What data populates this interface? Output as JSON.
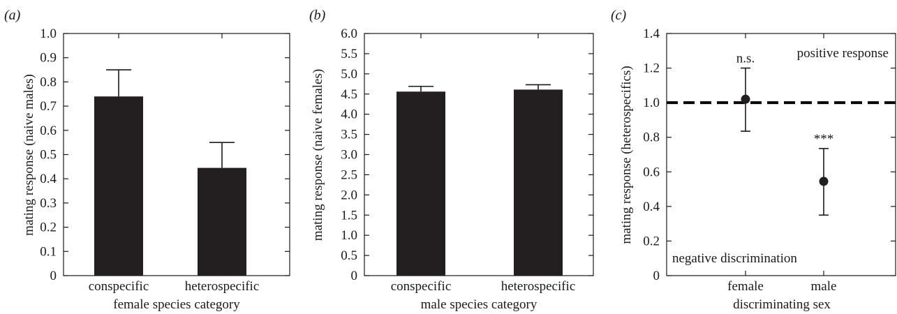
{
  "colors": {
    "bar": "#231f20",
    "axis": "#1a1a1a",
    "reference_line": "#000000"
  },
  "chart_data": [
    {
      "panel_label": "(a)",
      "type": "bar",
      "categories": [
        "conspecific",
        "heterospecific"
      ],
      "values": [
        0.74,
        0.445
      ],
      "error_upper": [
        0.85,
        0.55
      ],
      "xlabel": "female species category",
      "ylabel": "mating response (naive males)",
      "ylim": [
        0,
        1.0
      ],
      "yticks": [
        "0",
        "0.1",
        "0.2",
        "0.3",
        "0.4",
        "0.5",
        "0.6",
        "0.7",
        "0.8",
        "0.9",
        "1.0"
      ],
      "grid": false
    },
    {
      "panel_label": "(b)",
      "type": "bar",
      "categories": [
        "conspecific",
        "heterospecific"
      ],
      "values": [
        4.56,
        4.61
      ],
      "error_upper": [
        4.69,
        4.73
      ],
      "xlabel": "male species category",
      "ylabel": "mating response (naive females)",
      "ylim": [
        0,
        6.0
      ],
      "yticks": [
        "0",
        "0.5",
        "1.0",
        "1.5",
        "2.0",
        "2.5",
        "3.0",
        "3.5",
        "4.0",
        "4.5",
        "5.0",
        "5.5",
        "6.0"
      ],
      "grid": false
    },
    {
      "panel_label": "(c)",
      "type": "scatter",
      "categories": [
        "female",
        "male"
      ],
      "values": [
        1.02,
        0.545
      ],
      "error_low": [
        0.835,
        0.35
      ],
      "error_high": [
        1.2,
        0.735
      ],
      "significance": [
        "n.s.",
        "***"
      ],
      "reference_line": 1.0,
      "annotations": {
        "top_right": "positive response",
        "bottom_left": "negative discrimination"
      },
      "xlabel": "discriminating sex",
      "ylabel": "mating response (heterospecifics)",
      "ylim": [
        0,
        1.4
      ],
      "yticks": [
        "0",
        "0.2",
        "0.4",
        "0.6",
        "0.8",
        "1.0",
        "1.2",
        "1.4"
      ],
      "grid": false
    }
  ]
}
